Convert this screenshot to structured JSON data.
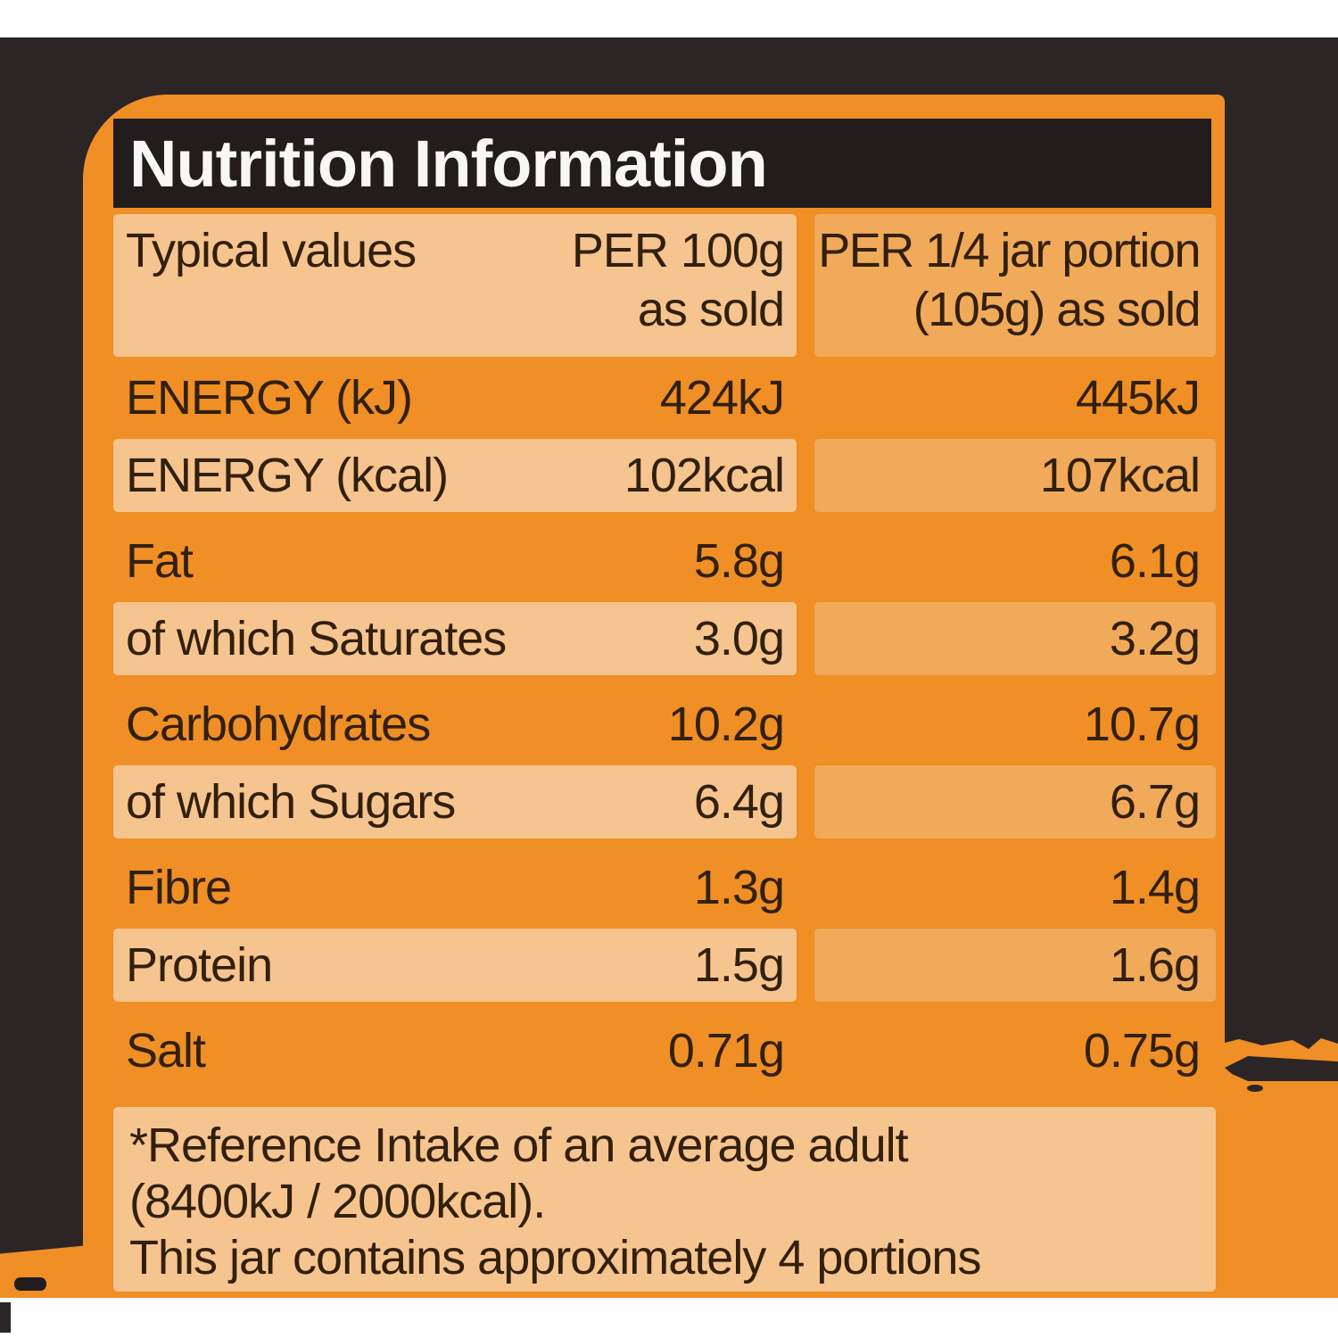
{
  "title": "Nutrition Information",
  "table": {
    "header": {
      "col1": "Typical values",
      "col2_line1": "PER 100g",
      "col2_line2": "as sold",
      "col3_line1": "PER 1/4 jar portion",
      "col3_line2": "(105g) as sold"
    },
    "rows": [
      {
        "label": "ENERGY (kJ)",
        "per100": "424kJ",
        "portion": "445kJ",
        "shade": "dark"
      },
      {
        "label": "ENERGY (kcal)",
        "per100": "102kcal",
        "portion": "107kcal",
        "shade": "light"
      },
      {
        "label": "Fat",
        "per100": "5.8g",
        "portion": "6.1g",
        "shade": "dark"
      },
      {
        "label": "of which Saturates",
        "per100": "3.0g",
        "portion": "3.2g",
        "shade": "light"
      },
      {
        "label": "Carbohydrates",
        "per100": "10.2g",
        "portion": "10.7g",
        "shade": "dark"
      },
      {
        "label": "of which Sugars",
        "per100": "6.4g",
        "portion": "6.7g",
        "shade": "light"
      },
      {
        "label": "Fibre",
        "per100": "1.3g",
        "portion": "1.4g",
        "shade": "dark"
      },
      {
        "label": "Protein",
        "per100": "1.5g",
        "portion": "1.6g",
        "shade": "light"
      },
      {
        "label": "Salt",
        "per100": "0.71g",
        "portion": "0.75g",
        "shade": "dark"
      }
    ],
    "footnote_lines": [
      "*Reference Intake of an average adult",
      "(8400kJ / 2000kcal).",
      "This jar contains approximately 4 portions"
    ]
  },
  "colors": {
    "photo_black": "#2B2526",
    "panel_black": "#221C1D",
    "base_orange": "#EF8F25",
    "stripe_peach": "#F6C48E",
    "stripe_mid": "#F1A95A",
    "text_ink": "#32200E",
    "title_text": "#F8F7F5"
  }
}
